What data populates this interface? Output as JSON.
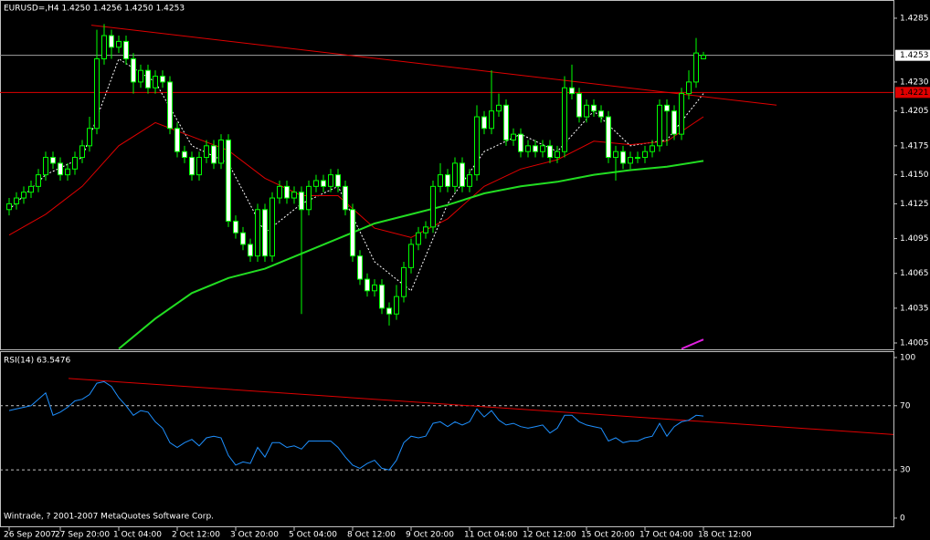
{
  "chart_data": [
    {
      "type": "candlestick",
      "title": "EURUSD=,H4  1.4250 1.4256 1.4250 1.4253",
      "candle_color": "#00ff00",
      "up_fill": "#000000",
      "down_fill": "#ffffff",
      "open": [
        1.412,
        1.4125,
        1.413,
        1.4135,
        1.414,
        1.415,
        1.4165,
        1.416,
        1.415,
        1.4155,
        1.4165,
        1.4175,
        1.419,
        1.425,
        1.427,
        1.426,
        1.4265,
        1.425,
        1.423,
        1.424,
        1.4225,
        1.4235,
        1.423,
        1.419,
        1.417,
        1.4165,
        1.415,
        1.4165,
        1.4175,
        1.416,
        1.418,
        1.411,
        1.41,
        1.409,
        1.408,
        1.412,
        1.408,
        1.413,
        1.414,
        1.413,
        1.4135,
        1.412,
        1.414,
        1.4145,
        1.414,
        1.415,
        1.414,
        1.412,
        1.408,
        1.406,
        1.405,
        1.4055,
        1.4035,
        1.403,
        1.4045,
        1.407,
        1.409,
        1.41,
        1.4105,
        1.414,
        1.415,
        1.414,
        1.416,
        1.414,
        1.415,
        1.42,
        1.419,
        1.4205,
        1.421,
        1.418,
        1.4185,
        1.417,
        1.4175,
        1.417,
        1.4175,
        1.4165,
        1.417,
        1.4225,
        1.422,
        1.42,
        1.421,
        1.4205,
        1.42,
        1.4165,
        1.417,
        1.416,
        1.4165,
        1.4165,
        1.417,
        1.4175,
        1.421,
        1.4205,
        1.4185,
        1.422,
        1.423,
        1.425
      ],
      "high": [
        1.413,
        1.4135,
        1.414,
        1.4145,
        1.4155,
        1.417,
        1.417,
        1.4165,
        1.416,
        1.417,
        1.418,
        1.42,
        1.4275,
        1.428,
        1.4275,
        1.427,
        1.427,
        1.4255,
        1.4245,
        1.4245,
        1.424,
        1.424,
        1.4235,
        1.4195,
        1.4175,
        1.417,
        1.417,
        1.418,
        1.418,
        1.4185,
        1.4185,
        1.4115,
        1.4105,
        1.4095,
        1.4125,
        1.4125,
        1.4135,
        1.4145,
        1.4145,
        1.414,
        1.414,
        1.4145,
        1.415,
        1.415,
        1.4155,
        1.4155,
        1.4145,
        1.4125,
        1.4085,
        1.4065,
        1.406,
        1.406,
        1.404,
        1.4055,
        1.4075,
        1.4095,
        1.4105,
        1.411,
        1.4145,
        1.416,
        1.4155,
        1.4165,
        1.4165,
        1.4155,
        1.421,
        1.4205,
        1.424,
        1.422,
        1.4215,
        1.419,
        1.419,
        1.418,
        1.418,
        1.418,
        1.418,
        1.4175,
        1.4235,
        1.4245,
        1.4225,
        1.4215,
        1.4215,
        1.421,
        1.4205,
        1.4175,
        1.4175,
        1.417,
        1.417,
        1.4175,
        1.418,
        1.4215,
        1.4215,
        1.421,
        1.4225,
        1.424,
        1.4268,
        1.4256
      ],
      "low": [
        1.4115,
        1.412,
        1.4125,
        1.413,
        1.4135,
        1.4145,
        1.4155,
        1.4145,
        1.4145,
        1.415,
        1.416,
        1.417,
        1.4185,
        1.4245,
        1.425,
        1.4255,
        1.4245,
        1.422,
        1.4225,
        1.422,
        1.422,
        1.4225,
        1.4185,
        1.4165,
        1.416,
        1.4145,
        1.4145,
        1.416,
        1.4155,
        1.4155,
        1.4105,
        1.4095,
        1.4085,
        1.4075,
        1.4075,
        1.4075,
        1.4075,
        1.4125,
        1.4125,
        1.4125,
        1.403,
        1.4115,
        1.4135,
        1.4135,
        1.4135,
        1.4135,
        1.4115,
        1.4075,
        1.4055,
        1.4045,
        1.4045,
        1.403,
        1.402,
        1.4025,
        1.404,
        1.4065,
        1.4085,
        1.4095,
        1.41,
        1.4135,
        1.4135,
        1.4135,
        1.4135,
        1.4135,
        1.4145,
        1.4185,
        1.4185,
        1.42,
        1.4175,
        1.4175,
        1.4165,
        1.4165,
        1.4165,
        1.4165,
        1.416,
        1.416,
        1.4165,
        1.4215,
        1.4195,
        1.4195,
        1.42,
        1.4195,
        1.416,
        1.4145,
        1.4155,
        1.4155,
        1.416,
        1.416,
        1.4165,
        1.417,
        1.4175,
        1.418,
        1.418,
        1.4215,
        1.4225,
        1.425
      ],
      "close": [
        1.4125,
        1.413,
        1.4135,
        1.414,
        1.415,
        1.4165,
        1.416,
        1.415,
        1.4155,
        1.4165,
        1.4175,
        1.419,
        1.425,
        1.427,
        1.426,
        1.4265,
        1.425,
        1.423,
        1.424,
        1.4225,
        1.4235,
        1.423,
        1.419,
        1.417,
        1.4165,
        1.415,
        1.4165,
        1.4175,
        1.416,
        1.418,
        1.411,
        1.41,
        1.409,
        1.408,
        1.412,
        1.408,
        1.413,
        1.414,
        1.413,
        1.4135,
        1.412,
        1.414,
        1.4145,
        1.414,
        1.415,
        1.414,
        1.412,
        1.408,
        1.406,
        1.405,
        1.4055,
        1.4035,
        1.403,
        1.4045,
        1.407,
        1.409,
        1.41,
        1.4105,
        1.414,
        1.415,
        1.414,
        1.416,
        1.414,
        1.415,
        1.42,
        1.419,
        1.4205,
        1.421,
        1.418,
        1.4185,
        1.417,
        1.4175,
        1.417,
        1.4175,
        1.4165,
        1.417,
        1.4225,
        1.422,
        1.42,
        1.421,
        1.4205,
        1.42,
        1.4165,
        1.417,
        1.416,
        1.4165,
        1.4165,
        1.417,
        1.4175,
        1.421,
        1.4205,
        1.4185,
        1.422,
        1.423,
        1.4255,
        1.4253
      ],
      "lines": [
        {
          "color": "#ffffff",
          "dash": true,
          "width": 1,
          "x": [
            0,
            5,
            10,
            15,
            20,
            25,
            30,
            35,
            40,
            45,
            50,
            55,
            60,
            65,
            70,
            75,
            80,
            85,
            90,
            95
          ],
          "values": [
            1.412,
            1.415,
            1.4165,
            1.425,
            1.423,
            1.4175,
            1.416,
            1.41,
            1.4125,
            1.414,
            1.4075,
            1.405,
            1.4125,
            1.417,
            1.4185,
            1.417,
            1.4205,
            1.4175,
            1.418,
            1.422
          ]
        },
        {
          "color": "#e00000",
          "dash": false,
          "width": 1,
          "x": [
            0,
            5,
            10,
            15,
            20,
            25,
            30,
            35,
            40,
            45,
            50,
            55,
            60,
            65,
            70,
            75,
            80,
            85,
            90,
            95
          ],
          "values": [
            1.4098,
            1.4116,
            1.414,
            1.4175,
            1.4195,
            1.4183,
            1.4171,
            1.4147,
            1.4132,
            1.4132,
            1.4104,
            1.4096,
            1.4112,
            1.414,
            1.4155,
            1.4163,
            1.4179,
            1.4176,
            1.4179,
            1.42
          ]
        },
        {
          "color": "#22dd22",
          "dash": false,
          "width": 2,
          "x": [
            15,
            20,
            25,
            30,
            35,
            40,
            45,
            50,
            55,
            60,
            65,
            70,
            75,
            80,
            85,
            90,
            95
          ],
          "values": [
            1.4,
            1.4026,
            1.4048,
            1.4061,
            1.4069,
            1.4082,
            1.4095,
            1.4108,
            1.4116,
            1.4124,
            1.4134,
            1.414,
            1.4144,
            1.415,
            1.4154,
            1.4157,
            1.4162
          ]
        },
        {
          "color": "#e020e0",
          "dash": false,
          "width": 2,
          "x": [
            92,
            95
          ],
          "values": [
            1.4,
            1.4008
          ]
        },
        {
          "color": "#e00000",
          "dash": false,
          "width": 1,
          "x": [
            11.25,
            105
          ],
          "values": [
            1.4279,
            1.421
          ]
        }
      ],
      "hlines": [
        {
          "value": 1.4253,
          "color": "#a0a0a0",
          "label_bg": "#ffffff",
          "label_fg": "#000000"
        },
        {
          "value": 1.4221,
          "color": "#e00000",
          "label_bg": "#e00000",
          "label_fg": "#000000"
        }
      ],
      "xlim": [
        -1.25,
        121
      ],
      "ylim": [
        1.39995,
        1.43007
      ],
      "yticks": [
        1.4285,
        {
          "value": 1.423,
          "label": "1.4230"
        },
        1.4205,
        1.4175,
        {
          "value": 1.415,
          "label": "1.4150"
        },
        1.4125,
        1.4095,
        1.4065,
        1.4035,
        1.4005
      ]
    },
    {
      "type": "line",
      "title": "RSI(14) 63.5476",
      "color": "#1e90ff",
      "values": [
        67,
        68,
        69,
        70,
        74,
        78,
        64,
        66,
        69,
        73,
        74,
        77,
        84,
        85,
        82,
        75,
        70,
        64,
        67,
        66,
        60,
        56,
        47,
        44,
        47,
        49,
        45,
        50,
        51,
        50,
        39,
        33,
        35,
        34,
        44,
        38,
        47,
        47,
        44,
        45,
        43,
        48,
        48,
        48,
        48,
        44,
        38,
        33,
        31,
        34,
        36,
        31,
        30,
        36,
        47,
        51,
        50,
        51,
        59,
        60,
        57,
        60,
        58,
        60,
        68,
        63,
        67,
        61,
        58,
        59,
        57,
        56,
        57,
        58,
        53,
        56,
        64,
        64,
        60,
        58,
        57,
        56,
        48,
        50,
        47,
        48,
        48,
        50,
        51,
        59,
        51,
        57,
        60,
        61,
        64,
        63.5476
      ],
      "levels": [
        70,
        30
      ],
      "trendline": {
        "color": "#e00000",
        "x": [
          8.125,
          121.25
        ],
        "values": [
          87,
          52
        ]
      },
      "xlim": [
        -1.25,
        121
      ],
      "ylim": [
        -5.7,
        103.4
      ],
      "yticks": [
        100,
        70,
        30,
        0
      ],
      "xticks": [
        {
          "value": 0,
          "label": "26 Sep 2007"
        },
        {
          "value": 7,
          "label": "27 Sep 20:00"
        },
        {
          "value": 15,
          "label": "1 Oct 04:00"
        },
        {
          "value": 23,
          "label": "2 Oct 12:00"
        },
        {
          "value": 31,
          "label": "3 Oct 20:00"
        },
        {
          "value": 39,
          "label": "5 Oct 04:00"
        },
        {
          "value": 47,
          "label": "8 Oct 12:00"
        },
        {
          "value": 55,
          "label": "9 Oct 20:00"
        },
        {
          "value": 63,
          "label": "11 Oct 04:00"
        },
        {
          "value": 71,
          "label": "12 Oct 12:00"
        },
        {
          "value": 79,
          "label": "15 Oct 20:00"
        },
        {
          "value": 87,
          "label": "17 Oct 04:00"
        },
        {
          "value": 95,
          "label": "18 Oct 12:00"
        }
      ],
      "annotation": "Wintrade, ? 2001-2007 MetaQuotes Software Corp."
    }
  ]
}
